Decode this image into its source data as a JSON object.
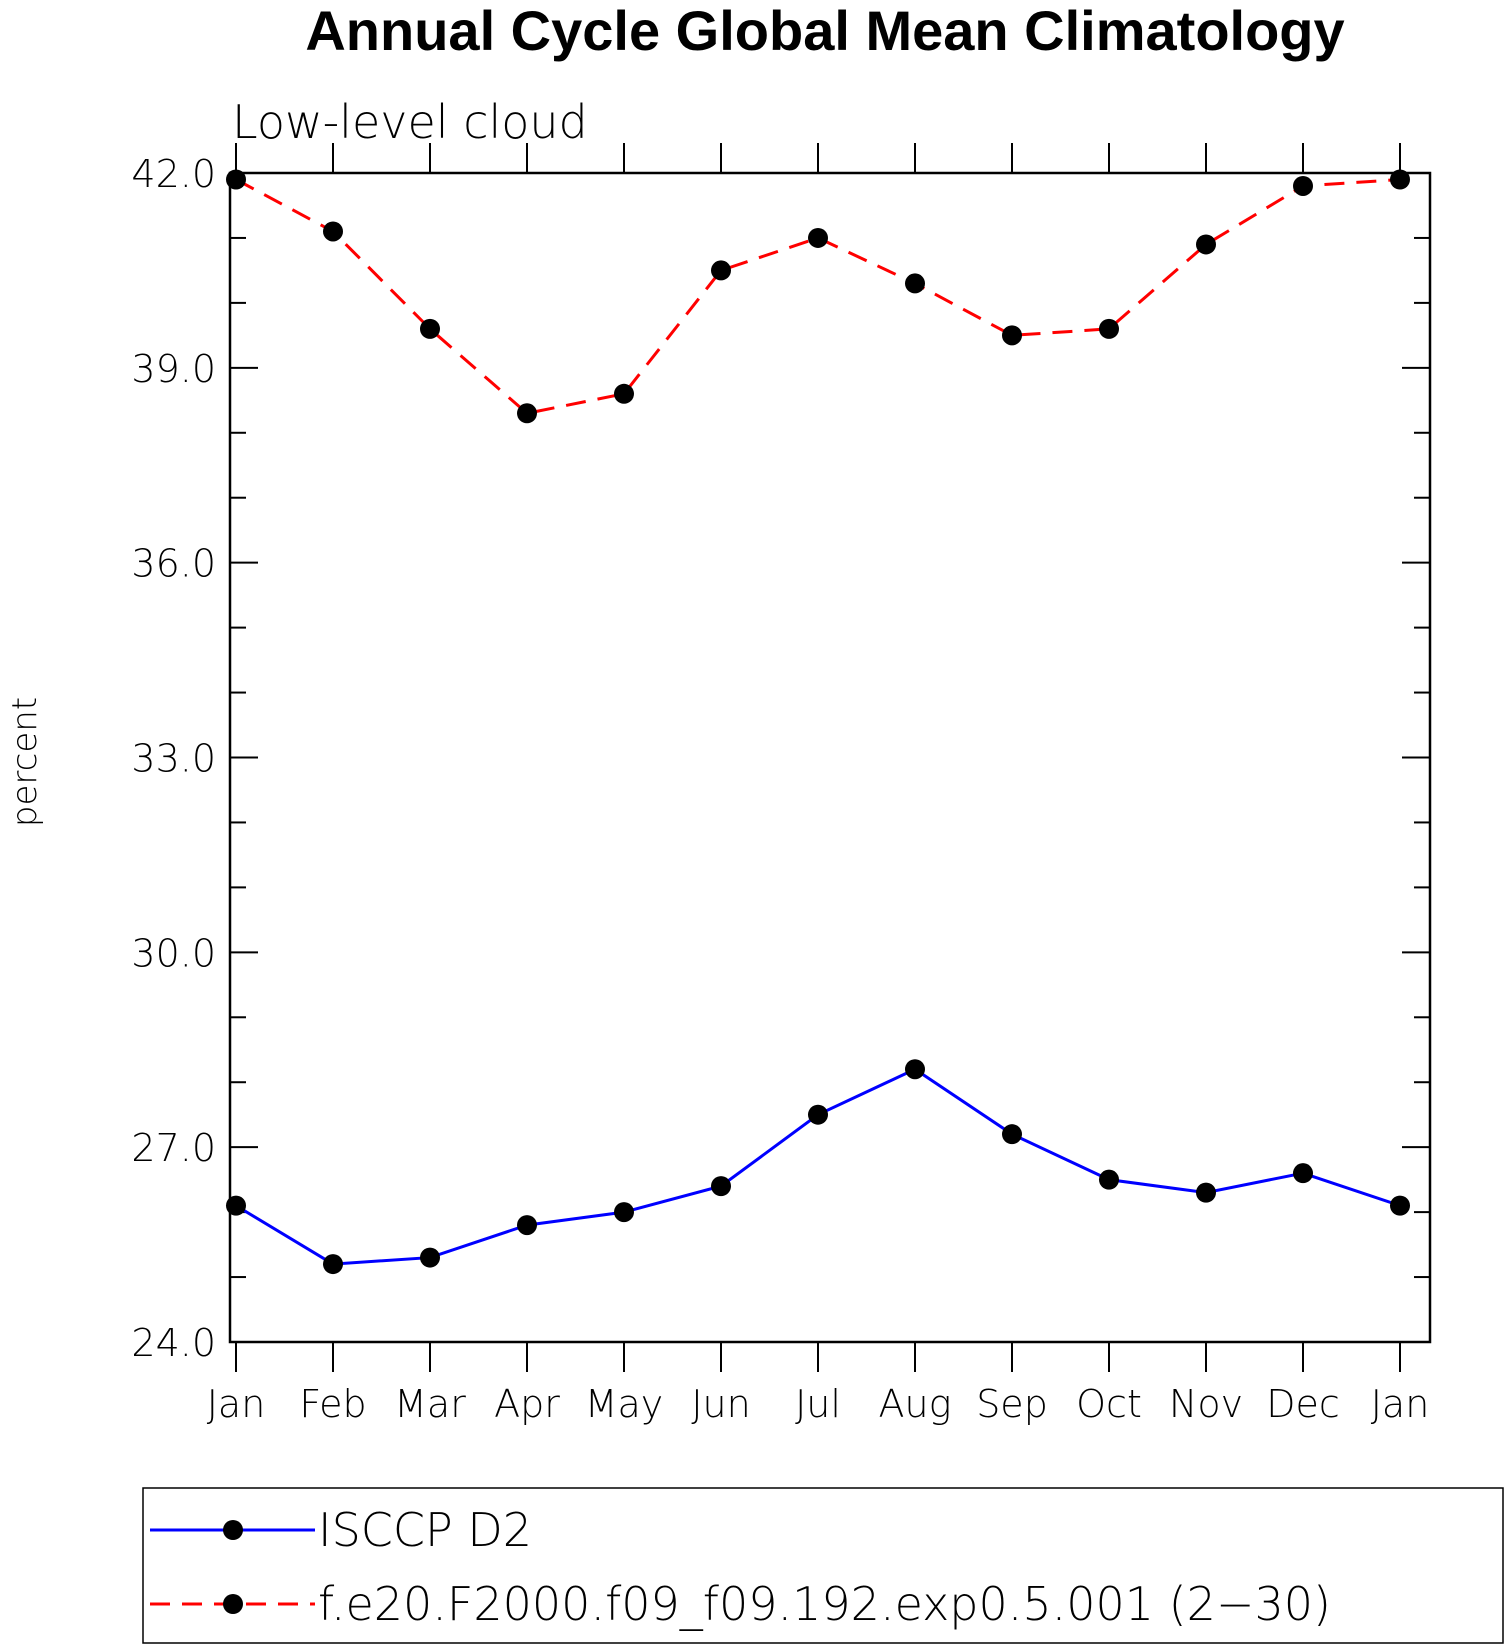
{
  "chart_data": {
    "type": "line",
    "title": "Annual Cycle Global Mean Climatology",
    "subtitle": "Low-level cloud",
    "xlabel": "",
    "ylabel": "percent",
    "categories": [
      "Jan",
      "Feb",
      "Mar",
      "Apr",
      "May",
      "Jun",
      "Jul",
      "Aug",
      "Sep",
      "Oct",
      "Nov",
      "Dec",
      "Jan"
    ],
    "ylim": [
      24.0,
      42.0
    ],
    "yticks": [
      "24.0",
      "27.0",
      "30.0",
      "33.0",
      "36.0",
      "39.0",
      "42.0"
    ],
    "series": [
      {
        "name": "ISCCP D2",
        "color": "#0000ff",
        "dash": "solid",
        "values": [
          26.1,
          25.2,
          25.3,
          25.8,
          26.0,
          26.4,
          27.5,
          28.2,
          27.2,
          26.5,
          26.3,
          26.6,
          26.1
        ]
      },
      {
        "name": "f.e20.F2000.f09_f09.192.exp0.5.001 (2−30)",
        "color": "#ff0000",
        "dash": "dashed",
        "values": [
          41.9,
          41.1,
          39.6,
          38.3,
          38.6,
          40.5,
          41.0,
          40.3,
          39.5,
          39.6,
          40.9,
          41.8,
          41.9
        ]
      }
    ],
    "marker": "filled-circle",
    "legend": "bottom"
  }
}
